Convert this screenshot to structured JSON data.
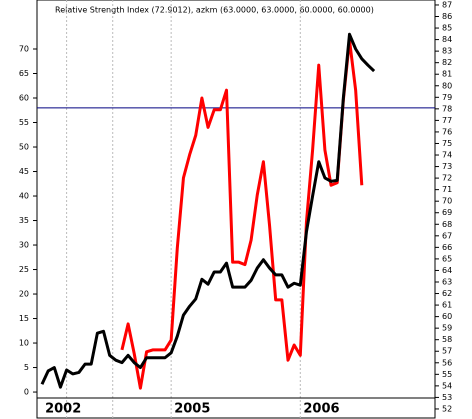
{
  "chart_data": {
    "type": "line",
    "title": "Relative Strength Index (72.9012), azkm (63.0000, 63.0000, 60.0000, 60.0000)",
    "categories": [
      null,
      null,
      null,
      null,
      null,
      null,
      null,
      null,
      null,
      null,
      null,
      null,
      null,
      null,
      null,
      null,
      null,
      null,
      null,
      null,
      null,
      null,
      null,
      null,
      null,
      null,
      null,
      null,
      null,
      null,
      null,
      null,
      null,
      null,
      null,
      null,
      null,
      null,
      null,
      null,
      null,
      null,
      null,
      null,
      null,
      null,
      null,
      null,
      null,
      null,
      null,
      null,
      null,
      null,
      null
    ],
    "series": [
      {
        "name": "azkm",
        "color": "#000000",
        "values": [
          1.6,
          4.3,
          5,
          1,
          4.5,
          3.7,
          4,
          5.7,
          5.7,
          12,
          12.4,
          7.5,
          6.5,
          6,
          7.5,
          6,
          5,
          7,
          7,
          7,
          7,
          8,
          11.4,
          15.7,
          17.5,
          19,
          23,
          22,
          24.5,
          24.5,
          26.3,
          21.4,
          21.4,
          21.4,
          22.8,
          25.3,
          27,
          25.3,
          23.9,
          23.9,
          21.4,
          22.2,
          21.8,
          32.7,
          40,
          47,
          43.7,
          43,
          43.2,
          60,
          73,
          70,
          68,
          66.7,
          65.5
        ]
      },
      {
        "name": "Relative Strength Index",
        "color": "#ff0000",
        "values": [
          null,
          null,
          null,
          null,
          null,
          null,
          null,
          null,
          null,
          null,
          null,
          null,
          null,
          8.6,
          13.9,
          7.8,
          0.8,
          8.2,
          8.6,
          8.6,
          8.6,
          10.6,
          29.4,
          43.7,
          48.4,
          52.4,
          60,
          54,
          57.6,
          57.6,
          61.6,
          26.5,
          26.5,
          26,
          31,
          40.2,
          47,
          34,
          18.8,
          18.8,
          6.5,
          9.6,
          7.5,
          34.7,
          49.4,
          66.7,
          49.4,
          42.2,
          42.7,
          59.6,
          71.8,
          61.6,
          42.2,
          null,
          null
        ]
      }
    ],
    "hline": 58,
    "xticks": [
      4,
      11.5,
      21,
      42
    ],
    "x_labels": [
      {
        "value": 0.5,
        "label": "2002"
      },
      {
        "value": 21.5,
        "label": "2005"
      },
      {
        "value": 42.5,
        "label": "2006"
      }
    ],
    "ylim": [
      -5.5,
      80
    ],
    "yticks": [
      0,
      5,
      10,
      15,
      20,
      25,
      30,
      35,
      40,
      45,
      50,
      55,
      60,
      65,
      70
    ],
    "y2lim": [
      51.13,
      87.43
    ],
    "y2ticks": [
      52,
      53,
      54,
      55,
      56,
      57,
      58,
      59,
      60,
      61,
      62,
      63,
      64,
      65,
      66,
      67,
      68,
      69,
      70,
      71,
      72,
      73,
      74,
      75,
      76,
      77,
      78,
      79,
      80,
      81,
      82,
      83,
      84,
      85,
      86,
      87
    ]
  }
}
